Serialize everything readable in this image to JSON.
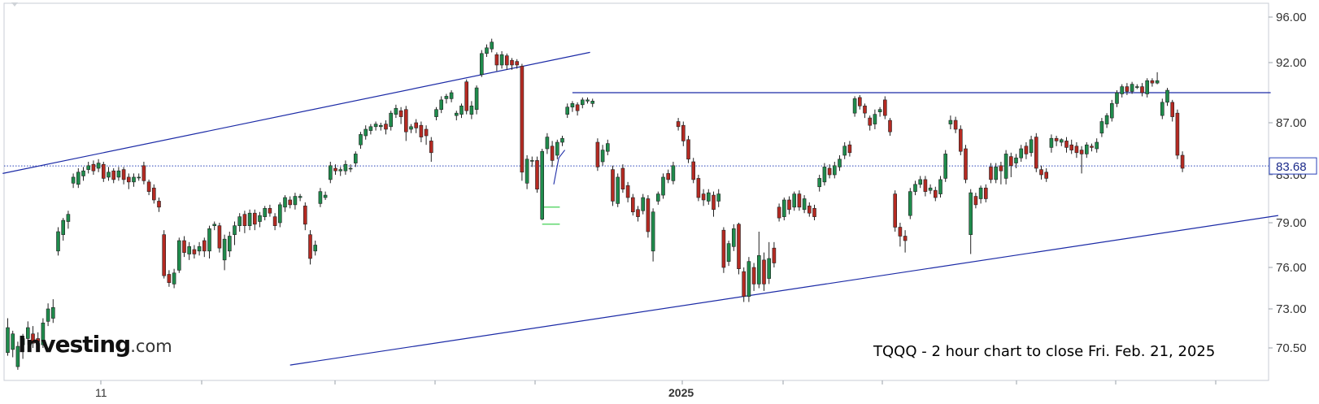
{
  "branding": {
    "logo_main": "Investing",
    "logo_suffix": ".com"
  },
  "chart_data": {
    "type": "candlestick",
    "ticker": "TQQQ",
    "annotation": "TQQQ - 2 hour chart to close Fri. Feb. 21, 2025",
    "last_price": 83.68,
    "last_price_label": "83.68",
    "price_axis": {
      "ticks": [
        96.0,
        92.0,
        87.0,
        83.0,
        79.0,
        76.0,
        73.0,
        70.5
      ],
      "tick_labels": [
        "96.00",
        "92.00",
        "87.00",
        "83.00",
        "79.00",
        "76.00",
        "73.00",
        "70.50"
      ],
      "range": [
        69.0,
        97.5
      ]
    },
    "time_axis": {
      "labels": [
        "11",
        "2025"
      ]
    },
    "grid": "off",
    "colors": {
      "up": "#1f8b4c",
      "down": "#b52a22",
      "trendline": "#1b2aa6",
      "last_price_line": "#2840b8"
    },
    "candles": [
      [
        70.2,
        71.8,
        72.4,
        70
      ],
      [
        70.4,
        71.4,
        71.6,
        69.9
      ],
      [
        69.3,
        70.6,
        70.9,
        69.1
      ],
      [
        70.7,
        71.1,
        71.4,
        69.8
      ],
      [
        71.1,
        71.8,
        72.2,
        70.7
      ],
      [
        71.4,
        70.8,
        71.9,
        70.5
      ],
      [
        71.1,
        70.9,
        71.5,
        70.6
      ],
      [
        70.7,
        72.1,
        72.4,
        70.5
      ],
      [
        72.2,
        73,
        73.4,
        71.9
      ],
      [
        72.4,
        73.1,
        73.7,
        72.1
      ],
      [
        77.1,
        78.4,
        78.7,
        76.8
      ],
      [
        78.2,
        79.2,
        79.4,
        77.8
      ],
      [
        79.1,
        79.7,
        80,
        78.6
      ],
      [
        82.3,
        82.8,
        83.1,
        81.9
      ],
      [
        82.2,
        83.2,
        83.5,
        81.9
      ],
      [
        82.9,
        83.3,
        83.6,
        82.5
      ],
      [
        83.4,
        83.7,
        84,
        83.1
      ],
      [
        83.8,
        83.3,
        84.1,
        83
      ],
      [
        83.5,
        83.9,
        84.2,
        83.2
      ],
      [
        83.8,
        82.7,
        84,
        82.4
      ],
      [
        82.8,
        83.2,
        83.6,
        82.5
      ],
      [
        83.3,
        82.6,
        83.5,
        82.3
      ],
      [
        82.8,
        83.3,
        83.6,
        82.5
      ],
      [
        83.4,
        82.6,
        83.6,
        82.2
      ],
      [
        82.8,
        82.4,
        83.1,
        81.8
      ],
      [
        82.4,
        82.8,
        83.1,
        82
      ],
      [
        82.8,
        82.8,
        83.1,
        82.5
      ],
      [
        83.7,
        82.5,
        84,
        82.2
      ],
      [
        82.4,
        81.6,
        82.6,
        81.3
      ],
      [
        81.9,
        80.9,
        82.2,
        80.6
      ],
      [
        80.8,
        80.3,
        81.1,
        79.9
      ],
      [
        78.2,
        75.4,
        78.5,
        75.2
      ],
      [
        75.5,
        74.9,
        75.8,
        74.6
      ],
      [
        74.8,
        75.6,
        75.9,
        74.5
      ],
      [
        75.8,
        77.8,
        78,
        75.6
      ],
      [
        77.8,
        77,
        78.1,
        76.7
      ],
      [
        76.9,
        77.4,
        77.7,
        76.5
      ],
      [
        77.2,
        76.9,
        77.5,
        76.6
      ],
      [
        77.1,
        77.4,
        77.7,
        76.8
      ],
      [
        77.8,
        77.1,
        78,
        76.7
      ],
      [
        77.1,
        78.6,
        78.8,
        76.6
      ],
      [
        78.8,
        78.9,
        79.1,
        78.5
      ],
      [
        78.8,
        77.3,
        79,
        77
      ],
      [
        76.5,
        77.9,
        78.2,
        75.8
      ],
      [
        77.1,
        78.1,
        78.4,
        76.7
      ],
      [
        78.2,
        78.8,
        79.1,
        77.5
      ],
      [
        78.8,
        79.5,
        79.8,
        78.4
      ],
      [
        79.7,
        78.8,
        80,
        78.3
      ],
      [
        78.8,
        79.8,
        80.1,
        78.5
      ],
      [
        79.8,
        78.9,
        80.1,
        78.5
      ],
      [
        79.1,
        79.6,
        79.9,
        78.7
      ],
      [
        79.5,
        80.2,
        80.4,
        79.2
      ],
      [
        80.2,
        79.8,
        80.5,
        79.5
      ],
      [
        79.5,
        78.8,
        79.8,
        78.5
      ],
      [
        79,
        80.5,
        80.7,
        78.7
      ],
      [
        80.3,
        81.1,
        81.3,
        79.9
      ],
      [
        80.9,
        80.5,
        81.2,
        80.2
      ],
      [
        80.5,
        81.2,
        81.5,
        80.1
      ],
      [
        81.1,
        81.2,
        81.4,
        80.8
      ],
      [
        80.4,
        78.9,
        80.7,
        78.5
      ],
      [
        78.2,
        76.6,
        78.5,
        76.2
      ],
      [
        77.1,
        77.5,
        77.8,
        76.8
      ],
      [
        80.6,
        81.6,
        81.9,
        80.3
      ],
      [
        81.1,
        81.3,
        81.6,
        80.9
      ],
      [
        82.6,
        83.7,
        84,
        82.3
      ],
      [
        83.5,
        83.3,
        83.8,
        83
      ],
      [
        83.3,
        83.4,
        83.6,
        82.9
      ],
      [
        83.3,
        83.8,
        84.1,
        83
      ],
      [
        83.5,
        83.5,
        83.8,
        83.2
      ],
      [
        83.9,
        84.6,
        84.8,
        83.6
      ],
      [
        85.3,
        86.1,
        86.3,
        85
      ],
      [
        86,
        86.5,
        86.8,
        85.7
      ],
      [
        86.4,
        86.7,
        86.9,
        86.1
      ],
      [
        86.7,
        86.9,
        87.1,
        86.4
      ],
      [
        86.7,
        86.8,
        87,
        86.4
      ],
      [
        86.9,
        86.5,
        87.2,
        86.1
      ],
      [
        86.7,
        87.8,
        88,
        86.4
      ],
      [
        87.7,
        88.2,
        88.5,
        87.4
      ],
      [
        88,
        87.5,
        88.3,
        86.9
      ],
      [
        88.1,
        86.3,
        88.4,
        85.6
      ],
      [
        86.5,
        86.7,
        86.9,
        86.2
      ],
      [
        87,
        86.6,
        87.3,
        86.2
      ],
      [
        86.8,
        85.9,
        87.1,
        85.5
      ],
      [
        86.5,
        86,
        86.8,
        85.3
      ],
      [
        85.6,
        84.7,
        85.9,
        84
      ],
      [
        87.5,
        88.1,
        88.3,
        87.2
      ],
      [
        88.1,
        88.9,
        89.2,
        87.8
      ],
      [
        89,
        89.2,
        89.4,
        88.6
      ],
      [
        89,
        89.5,
        89.7,
        88.7
      ],
      [
        87.6,
        87.8,
        88,
        87.2
      ],
      [
        87.7,
        88.4,
        88.6,
        87.4
      ],
      [
        90.4,
        88,
        90.6,
        87.7
      ],
      [
        87.7,
        88.4,
        88.8,
        87.3
      ],
      [
        88.1,
        89.9,
        90.1,
        87.7
      ],
      [
        91,
        92.8,
        93.1,
        90.8
      ],
      [
        92.8,
        93.3,
        93.6,
        92.5
      ],
      [
        93.2,
        93.8,
        94.1,
        92.9
      ],
      [
        92.7,
        91.8,
        92.9,
        91.3
      ],
      [
        91.8,
        92.7,
        93,
        91.5
      ],
      [
        92.6,
        91.8,
        92.8,
        91.4
      ],
      [
        92.2,
        91.8,
        92.4,
        91.4
      ],
      [
        92.1,
        91.8,
        92.3,
        91.5
      ],
      [
        91.7,
        83.2,
        91.9,
        82.5
      ],
      [
        82.3,
        84.2,
        84.5,
        81.8
      ],
      [
        84.1,
        84.1,
        84.4,
        83.6
      ],
      [
        84.1,
        81.8,
        84.4,
        81.5
      ],
      [
        79.3,
        84.8,
        85,
        79.2
      ],
      [
        85,
        85.9,
        86.2,
        84.6
      ],
      [
        85.2,
        84.1,
        85.6,
        83.6
      ],
      [
        84.5,
        85.5,
        85.7,
        84.2
      ],
      [
        85.5,
        85.8,
        86,
        85.2
      ],
      [
        87.7,
        88.3,
        88.6,
        87.4
      ],
      [
        88.3,
        88.6,
        88.8,
        87.9
      ],
      [
        88.5,
        88,
        88.7,
        87.6
      ],
      [
        88.5,
        88.9,
        89.1,
        88.2
      ],
      [
        88.8,
        88.9,
        89.1,
        88.6
      ],
      [
        88.6,
        88.8,
        89,
        88.3
      ],
      [
        85.5,
        83.6,
        85.8,
        83.3
      ],
      [
        84,
        84.9,
        85.3,
        83.7
      ],
      [
        84.8,
        85.4,
        85.7,
        84.5
      ],
      [
        83.4,
        80.8,
        83.7,
        80.4
      ],
      [
        80.6,
        82.8,
        83.1,
        80.3
      ],
      [
        83.5,
        81.8,
        83.8,
        81.5
      ],
      [
        82.1,
        81.1,
        82.4,
        80.7
      ],
      [
        81.1,
        79.9,
        81.4,
        79.6
      ],
      [
        80.1,
        79.5,
        80.4,
        79.1
      ],
      [
        80,
        81.1,
        81.4,
        79.7
      ],
      [
        81,
        78.4,
        81.3,
        78
      ],
      [
        77.1,
        79.9,
        80.2,
        76.4
      ],
      [
        80.8,
        81.4,
        81.6,
        80.5
      ],
      [
        81.3,
        82.8,
        83.1,
        81
      ],
      [
        83.1,
        82.6,
        83.4,
        82.3
      ],
      [
        82.5,
        83.7,
        84,
        82.2
      ],
      [
        87.1,
        86.7,
        87.4,
        86.4
      ],
      [
        86.8,
        85.6,
        87.1,
        85.2
      ],
      [
        85.7,
        84.2,
        86,
        83.9
      ],
      [
        84,
        82.6,
        84.3,
        82.3
      ],
      [
        82.7,
        81.1,
        83,
        80.8
      ],
      [
        81.4,
        80.9,
        81.8,
        80.4
      ],
      [
        80.8,
        81.5,
        81.8,
        80.5
      ],
      [
        81.3,
        80.1,
        81.6,
        79.5
      ],
      [
        80.8,
        81.4,
        81.8,
        80.3
      ],
      [
        78.5,
        76,
        78.7,
        75.6
      ],
      [
        76.4,
        77.6,
        77.8,
        76.1
      ],
      [
        77.4,
        78.6,
        78.9,
        77.1
      ],
      [
        78.9,
        75.9,
        79,
        75.5
      ],
      [
        75.7,
        73.9,
        76,
        73.5
      ],
      [
        73.9,
        76.4,
        76.7,
        73.5
      ],
      [
        76,
        74.8,
        76.3,
        74.3
      ],
      [
        74.8,
        76.8,
        78.4,
        74.5
      ],
      [
        76.5,
        74.8,
        77,
        74.3
      ],
      [
        75.2,
        76.6,
        77.7,
        74.8
      ],
      [
        77.3,
        76.3,
        77.7,
        76
      ],
      [
        80.3,
        79.4,
        80.6,
        79.1
      ],
      [
        79.5,
        80.9,
        81.1,
        79.2
      ],
      [
        80.9,
        80.1,
        81.2,
        79.7
      ],
      [
        80.3,
        81.4,
        81.6,
        80
      ],
      [
        81.4,
        80.3,
        81.7,
        80
      ],
      [
        80.1,
        81,
        81.3,
        79.8
      ],
      [
        80.4,
        79.8,
        80.7,
        79.5
      ],
      [
        80.2,
        79.5,
        80.5,
        79.2
      ],
      [
        82,
        82.7,
        83,
        81.6
      ],
      [
        82.4,
        83.6,
        83.9,
        82.1
      ],
      [
        83.5,
        83,
        83.8,
        82.7
      ],
      [
        83,
        83.7,
        84,
        82.7
      ],
      [
        83.6,
        84.2,
        84.5,
        83.3
      ],
      [
        84.5,
        85.2,
        85.5,
        84.2
      ],
      [
        85.3,
        84.7,
        85.6,
        84.4
      ],
      [
        87.8,
        89,
        89.2,
        87.5
      ],
      [
        89.1,
        88.4,
        89.3,
        88.1
      ],
      [
        88.4,
        87.8,
        88.6,
        87.4
      ],
      [
        87.4,
        86.8,
        87.6,
        86.4
      ],
      [
        86.9,
        87.7,
        88.1,
        86.5
      ],
      [
        87.9,
        88.1,
        88.3,
        87.5
      ],
      [
        88.9,
        87.6,
        89.2,
        87.3
      ],
      [
        87.2,
        86.3,
        87.4,
        86
      ],
      [
        81.4,
        78.7,
        81.7,
        78.4
      ],
      [
        78.7,
        78.1,
        79,
        77.4
      ],
      [
        78.1,
        77.8,
        78.5,
        77
      ],
      [
        79.6,
        81.6,
        81.9,
        79.3
      ],
      [
        81.6,
        82.2,
        82.5,
        81.3
      ],
      [
        82.2,
        82.6,
        82.9,
        81.9
      ],
      [
        82.6,
        81.6,
        82.9,
        81.2
      ],
      [
        81.7,
        81.9,
        82.2,
        81.4
      ],
      [
        81.7,
        81.1,
        82,
        80.8
      ],
      [
        81.4,
        82.6,
        82.9,
        81.1
      ],
      [
        82.7,
        84.6,
        84.9,
        82.4
      ],
      [
        86.9,
        87.2,
        87.6,
        86.5
      ],
      [
        87.2,
        86.5,
        87.5,
        86.2
      ],
      [
        86.5,
        84.8,
        86.8,
        84.5
      ],
      [
        85,
        82.6,
        85.3,
        82.3
      ],
      [
        78.2,
        81.5,
        81.8,
        76.9
      ],
      [
        81.2,
        80.5,
        81.5,
        80.2
      ],
      [
        81,
        81.9,
        82.1,
        80.6
      ],
      [
        81.9,
        81,
        82.2,
        80.7
      ],
      [
        83.6,
        82.6,
        83.9,
        82.3
      ],
      [
        82.6,
        83.6,
        83.9,
        82.3
      ],
      [
        83.7,
        83.3,
        84,
        82.2
      ],
      [
        82.7,
        84.6,
        84.9,
        82.2
      ],
      [
        84.4,
        83.7,
        84.7,
        82.8
      ],
      [
        83.9,
        84.3,
        84.6,
        83.5
      ],
      [
        84.3,
        85,
        85.3,
        84
      ],
      [
        85.2,
        84.6,
        85.5,
        84.2
      ],
      [
        84.7,
        85.7,
        86,
        84.4
      ],
      [
        85.9,
        83.5,
        86.2,
        83.2
      ],
      [
        83.4,
        83,
        83.7,
        82.6
      ],
      [
        83.2,
        82.7,
        83.5,
        82.4
      ],
      [
        85.1,
        85.8,
        86.1,
        84.7
      ],
      [
        85.8,
        85.6,
        86,
        85.2
      ],
      [
        85.5,
        85.7,
        85.8,
        85.2
      ],
      [
        85.6,
        85.1,
        85.9,
        84.7
      ],
      [
        85.3,
        84.9,
        85.7,
        84.6
      ],
      [
        85.2,
        84.7,
        85.5,
        84.3
      ],
      [
        84.9,
        84.6,
        85.2,
        83.1
      ],
      [
        84.6,
        85.3,
        85.5,
        84.3
      ],
      [
        85.2,
        85.1,
        85.4,
        84.8
      ],
      [
        85,
        85.5,
        85.8,
        84.7
      ],
      [
        86.2,
        87.1,
        87.4,
        85.9
      ],
      [
        86.9,
        87.6,
        87.8,
        86.6
      ],
      [
        87.4,
        88.6,
        88.9,
        87.1
      ],
      [
        88.6,
        89.5,
        89.7,
        88.3
      ],
      [
        89.4,
        90,
        90.2,
        89.1
      ],
      [
        90,
        89.6,
        90.3,
        89.3
      ],
      [
        89.6,
        90.2,
        90.4,
        89.4
      ],
      [
        90,
        90,
        90.2,
        89.8
      ],
      [
        90,
        89.5,
        90.3,
        89.2
      ],
      [
        89.4,
        90.5,
        90.7,
        89.1
      ],
      [
        90.5,
        90.3,
        90.7,
        90
      ],
      [
        90.3,
        90.5,
        91.2,
        90.2
      ],
      [
        87.6,
        88.7,
        89,
        87.3
      ],
      [
        88.7,
        89.7,
        89.9,
        88.4
      ],
      [
        88.7,
        87.5,
        88.9,
        87.1
      ],
      [
        87.8,
        84.5,
        88.1,
        84.2
      ],
      [
        84.5,
        83.5,
        84.8,
        83.2
      ]
    ],
    "trendlines": [
      {
        "id": "upper-channel",
        "from": [
          -1,
          83.1
        ],
        "to": [
          115.5,
          92.9
        ]
      },
      {
        "id": "lower-support",
        "from": [
          56,
          69.4
        ],
        "to": [
          252,
          79.6
        ]
      },
      {
        "id": "resistance",
        "from": [
          112,
          89.5
        ],
        "to": [
          250.5,
          89.5
        ]
      }
    ]
  }
}
